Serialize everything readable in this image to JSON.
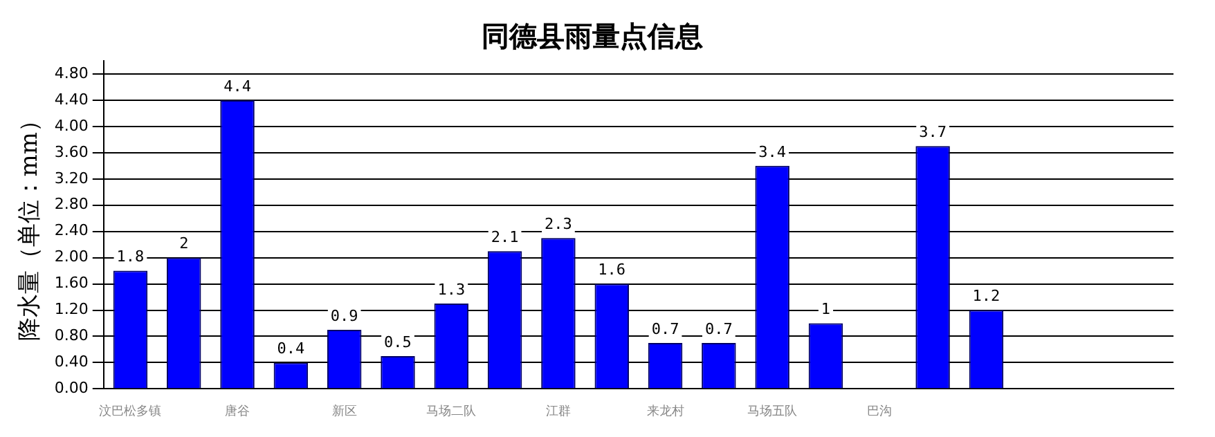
{
  "chart_data": {
    "type": "bar",
    "title": "同德县雨量点信息",
    "ylabel": "降水量（单位：mm）",
    "categories": [
      "汶巴松多镇",
      null,
      "唐谷",
      null,
      "新区",
      null,
      "马场二队",
      null,
      "江群",
      null,
      "来龙村",
      null,
      "马场五队",
      null,
      "巴沟",
      null,
      null,
      null,
      null,
      null
    ],
    "values": [
      1.8,
      2,
      4.4,
      0.4,
      0.9,
      0.5,
      1.3,
      2.1,
      2.3,
      1.6,
      0.7,
      0.7,
      3.4,
      1,
      null,
      3.7,
      1.2,
      null,
      null,
      null
    ],
    "color": "#0000ff",
    "data_labels": true,
    "grid": "y",
    "ylim": [
      0,
      5
    ],
    "yticks": [
      {
        "value": 0,
        "label": "0.00"
      },
      {
        "value": 0.4,
        "label": "0.40"
      },
      {
        "value": 0.8,
        "label": "0.80"
      },
      {
        "value": 1.2,
        "label": "1.20"
      },
      {
        "value": 1.6,
        "label": "1.60"
      },
      {
        "value": 2,
        "label": "2.00"
      },
      {
        "value": 2.4,
        "label": "2.40"
      },
      {
        "value": 2.8,
        "label": "2.80"
      },
      {
        "value": 3.2,
        "label": "3.20"
      },
      {
        "value": 3.6,
        "label": "3.60"
      },
      {
        "value": 4,
        "label": "4.00"
      },
      {
        "value": 4.4,
        "label": "4.40"
      },
      {
        "value": 4.8,
        "label": "4.80"
      }
    ]
  }
}
